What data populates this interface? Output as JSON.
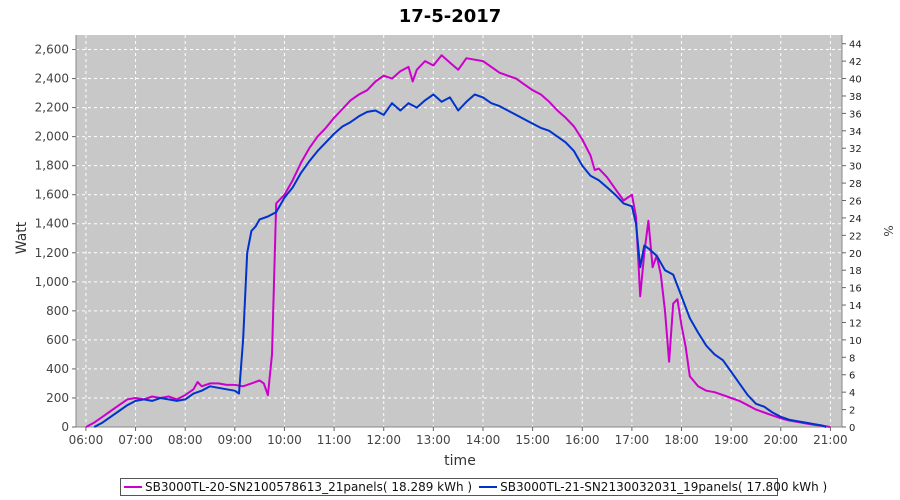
{
  "chart_data": {
    "type": "line",
    "title": "17-5-2017",
    "xlabel": "time",
    "ylabel": "Watt",
    "y2label": "%",
    "ylim": [
      0,
      2700
    ],
    "y2lim": [
      0,
      45
    ],
    "x_ticks": [
      "06:00",
      "07:00",
      "08:00",
      "09:00",
      "10:00",
      "11:00",
      "12:00",
      "13:00",
      "14:00",
      "15:00",
      "16:00",
      "17:00",
      "18:00",
      "19:00",
      "20:00",
      "21:00"
    ],
    "y_ticks": [
      0,
      200,
      400,
      600,
      800,
      1000,
      1200,
      1400,
      1600,
      1800,
      2000,
      2200,
      2400,
      2600
    ],
    "y2_ticks": [
      0,
      2,
      4,
      6,
      8,
      10,
      12,
      14,
      16,
      18,
      20,
      22,
      24,
      26,
      28,
      30,
      32,
      34,
      36,
      38,
      40,
      42,
      44
    ],
    "grid": true,
    "legend": "bottom",
    "colors": {
      "plot_bg": "#c8c8c8",
      "grid": "#ffffff"
    },
    "series": [
      {
        "name": "SB3000TL-20-SN2100578613_21panels( 18.289 kWh )",
        "color": "#cc00cc",
        "points": [
          [
            "06:00",
            0
          ],
          [
            "06:10",
            30
          ],
          [
            "06:20",
            70
          ],
          [
            "06:30",
            110
          ],
          [
            "06:40",
            150
          ],
          [
            "06:50",
            190
          ],
          [
            "07:00",
            200
          ],
          [
            "07:10",
            190
          ],
          [
            "07:20",
            210
          ],
          [
            "07:30",
            200
          ],
          [
            "07:40",
            210
          ],
          [
            "07:50",
            190
          ],
          [
            "08:00",
            220
          ],
          [
            "08:10",
            260
          ],
          [
            "08:15",
            310
          ],
          [
            "08:20",
            280
          ],
          [
            "08:30",
            300
          ],
          [
            "08:40",
            300
          ],
          [
            "08:50",
            290
          ],
          [
            "09:00",
            290
          ],
          [
            "09:10",
            280
          ],
          [
            "09:20",
            300
          ],
          [
            "09:30",
            320
          ],
          [
            "09:35",
            300
          ],
          [
            "09:40",
            220
          ],
          [
            "09:45",
            500
          ],
          [
            "09:50",
            1540
          ],
          [
            "10:00",
            1600
          ],
          [
            "10:10",
            1700
          ],
          [
            "10:20",
            1820
          ],
          [
            "10:30",
            1920
          ],
          [
            "10:40",
            2000
          ],
          [
            "10:50",
            2060
          ],
          [
            "11:00",
            2130
          ],
          [
            "11:10",
            2190
          ],
          [
            "11:20",
            2250
          ],
          [
            "11:30",
            2290
          ],
          [
            "11:40",
            2320
          ],
          [
            "11:50",
            2380
          ],
          [
            "12:00",
            2420
          ],
          [
            "12:10",
            2400
          ],
          [
            "12:20",
            2450
          ],
          [
            "12:30",
            2480
          ],
          [
            "12:35",
            2380
          ],
          [
            "12:40",
            2460
          ],
          [
            "12:50",
            2520
          ],
          [
            "13:00",
            2490
          ],
          [
            "13:10",
            2560
          ],
          [
            "13:20",
            2510
          ],
          [
            "13:30",
            2460
          ],
          [
            "13:40",
            2540
          ],
          [
            "13:50",
            2530
          ],
          [
            "14:00",
            2520
          ],
          [
            "14:10",
            2480
          ],
          [
            "14:20",
            2440
          ],
          [
            "14:30",
            2420
          ],
          [
            "14:40",
            2400
          ],
          [
            "14:50",
            2360
          ],
          [
            "15:00",
            2320
          ],
          [
            "15:10",
            2290
          ],
          [
            "15:20",
            2240
          ],
          [
            "15:30",
            2180
          ],
          [
            "15:40",
            2130
          ],
          [
            "15:50",
            2070
          ],
          [
            "16:00",
            1980
          ],
          [
            "16:10",
            1870
          ],
          [
            "16:15",
            1770
          ],
          [
            "16:20",
            1780
          ],
          [
            "16:30",
            1720
          ],
          [
            "16:40",
            1640
          ],
          [
            "16:50",
            1560
          ],
          [
            "17:00",
            1600
          ],
          [
            "17:05",
            1450
          ],
          [
            "17:10",
            900
          ],
          [
            "17:15",
            1200
          ],
          [
            "17:20",
            1420
          ],
          [
            "17:25",
            1100
          ],
          [
            "17:30",
            1180
          ],
          [
            "17:35",
            1050
          ],
          [
            "17:40",
            800
          ],
          [
            "17:45",
            450
          ],
          [
            "17:50",
            850
          ],
          [
            "17:55",
            880
          ],
          [
            "18:00",
            700
          ],
          [
            "18:05",
            550
          ],
          [
            "18:10",
            350
          ],
          [
            "18:20",
            280
          ],
          [
            "18:30",
            250
          ],
          [
            "18:40",
            240
          ],
          [
            "18:50",
            220
          ],
          [
            "19:00",
            200
          ],
          [
            "19:10",
            180
          ],
          [
            "19:20",
            150
          ],
          [
            "19:30",
            120
          ],
          [
            "19:40",
            100
          ],
          [
            "19:50",
            80
          ],
          [
            "20:00",
            60
          ],
          [
            "20:10",
            45
          ],
          [
            "20:20",
            35
          ],
          [
            "20:30",
            25
          ],
          [
            "20:40",
            15
          ],
          [
            "20:50",
            8
          ],
          [
            "21:00",
            0
          ]
        ]
      },
      {
        "name": "SB3000TL-21-SN2130032031_19panels( 17.800 kWh )",
        "color": "#0033cc",
        "points": [
          [
            "06:10",
            0
          ],
          [
            "06:20",
            30
          ],
          [
            "06:30",
            70
          ],
          [
            "06:40",
            110
          ],
          [
            "06:50",
            150
          ],
          [
            "07:00",
            180
          ],
          [
            "07:10",
            190
          ],
          [
            "07:20",
            180
          ],
          [
            "07:30",
            200
          ],
          [
            "07:40",
            190
          ],
          [
            "07:50",
            180
          ],
          [
            "08:00",
            190
          ],
          [
            "08:10",
            230
          ],
          [
            "08:20",
            250
          ],
          [
            "08:30",
            280
          ],
          [
            "08:40",
            270
          ],
          [
            "08:50",
            260
          ],
          [
            "09:00",
            250
          ],
          [
            "09:05",
            230
          ],
          [
            "09:10",
            600
          ],
          [
            "09:15",
            1200
          ],
          [
            "09:20",
            1350
          ],
          [
            "09:25",
            1380
          ],
          [
            "09:30",
            1430
          ],
          [
            "09:40",
            1450
          ],
          [
            "09:50",
            1480
          ],
          [
            "10:00",
            1580
          ],
          [
            "10:10",
            1650
          ],
          [
            "10:20",
            1750
          ],
          [
            "10:30",
            1830
          ],
          [
            "10:40",
            1900
          ],
          [
            "10:50",
            1960
          ],
          [
            "11:00",
            2020
          ],
          [
            "11:10",
            2070
          ],
          [
            "11:20",
            2100
          ],
          [
            "11:30",
            2140
          ],
          [
            "11:40",
            2170
          ],
          [
            "11:50",
            2180
          ],
          [
            "12:00",
            2150
          ],
          [
            "12:10",
            2230
          ],
          [
            "12:20",
            2180
          ],
          [
            "12:30",
            2230
          ],
          [
            "12:40",
            2200
          ],
          [
            "12:50",
            2250
          ],
          [
            "13:00",
            2290
          ],
          [
            "13:10",
            2240
          ],
          [
            "13:20",
            2270
          ],
          [
            "13:30",
            2180
          ],
          [
            "13:40",
            2240
          ],
          [
            "13:50",
            2290
          ],
          [
            "14:00",
            2270
          ],
          [
            "14:10",
            2230
          ],
          [
            "14:20",
            2210
          ],
          [
            "14:30",
            2180
          ],
          [
            "14:40",
            2150
          ],
          [
            "14:50",
            2120
          ],
          [
            "15:00",
            2090
          ],
          [
            "15:10",
            2060
          ],
          [
            "15:20",
            2040
          ],
          [
            "15:30",
            2000
          ],
          [
            "15:40",
            1960
          ],
          [
            "15:50",
            1900
          ],
          [
            "16:00",
            1800
          ],
          [
            "16:10",
            1730
          ],
          [
            "16:20",
            1700
          ],
          [
            "16:30",
            1650
          ],
          [
            "16:40",
            1600
          ],
          [
            "16:50",
            1540
          ],
          [
            "17:00",
            1520
          ],
          [
            "17:05",
            1400
          ],
          [
            "17:10",
            1100
          ],
          [
            "17:15",
            1250
          ],
          [
            "17:20",
            1230
          ],
          [
            "17:30",
            1180
          ],
          [
            "17:40",
            1080
          ],
          [
            "17:50",
            1050
          ],
          [
            "18:00",
            900
          ],
          [
            "18:10",
            750
          ],
          [
            "18:20",
            650
          ],
          [
            "18:30",
            560
          ],
          [
            "18:40",
            500
          ],
          [
            "18:50",
            460
          ],
          [
            "19:00",
            380
          ],
          [
            "19:10",
            300
          ],
          [
            "19:20",
            220
          ],
          [
            "19:30",
            160
          ],
          [
            "19:40",
            140
          ],
          [
            "19:50",
            100
          ],
          [
            "20:00",
            70
          ],
          [
            "20:10",
            50
          ],
          [
            "20:20",
            40
          ],
          [
            "20:30",
            30
          ],
          [
            "20:40",
            20
          ],
          [
            "20:50",
            10
          ],
          [
            "20:55",
            0
          ]
        ]
      }
    ]
  }
}
